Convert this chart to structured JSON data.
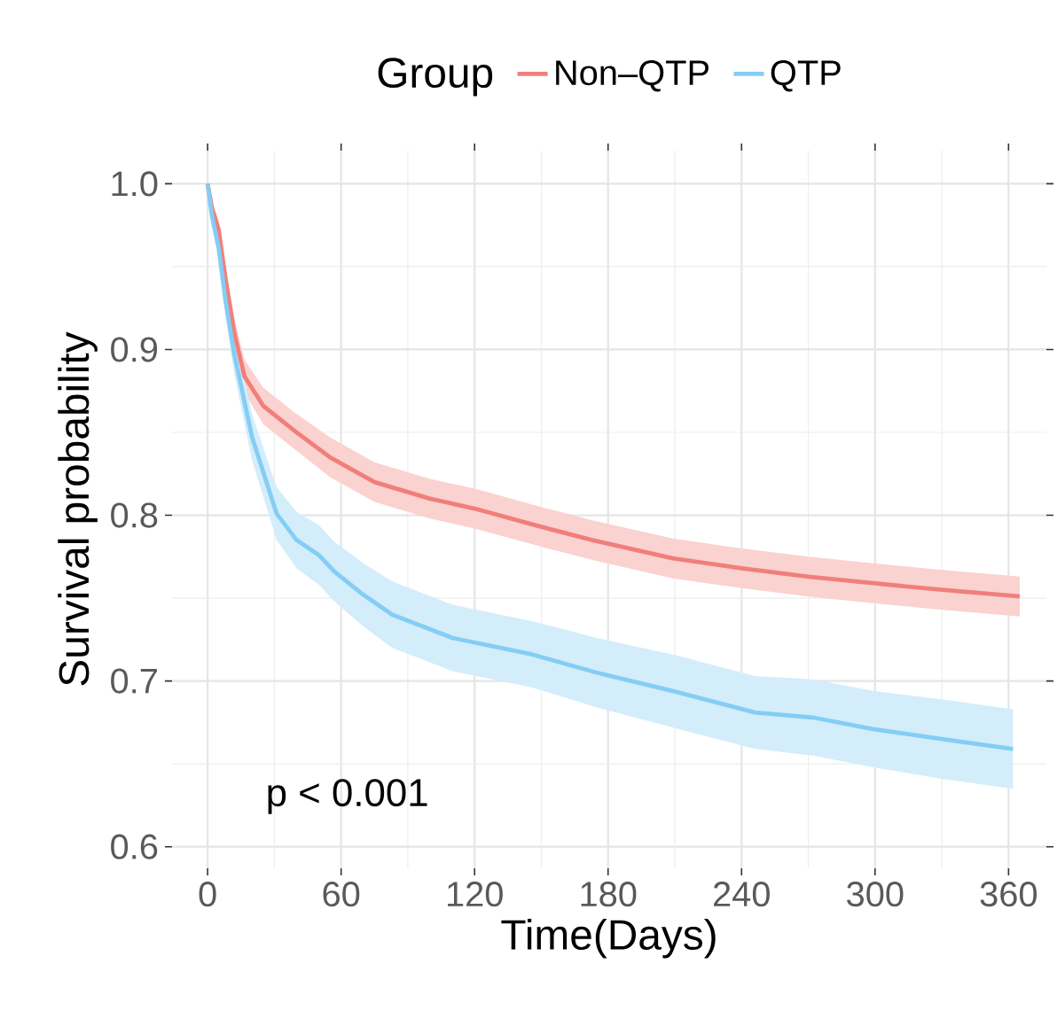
{
  "chart_data": {
    "type": "line",
    "xlabel": "Time(Days)",
    "ylabel": "Survival probability",
    "legend_title": "Group",
    "legend": "top",
    "grid": true,
    "xlim": [
      -16,
      377
    ],
    "xticks": [
      0,
      60,
      120,
      180,
      240,
      300,
      360
    ],
    "ylim": [
      0.587,
      1.02
    ],
    "yticks": [
      {
        "value": 0.6,
        "label": "0.6"
      },
      {
        "value": 0.7,
        "label": "0.7"
      },
      {
        "value": 0.8,
        "label": "0.8"
      },
      {
        "value": 0.9,
        "label": "0.9"
      },
      {
        "value": 1,
        "label": "1.0"
      }
    ],
    "annotations": [
      "p < 0.001"
    ],
    "series": [
      {
        "name": "Non–QTP",
        "color": "#f07f7a",
        "x": [
          0,
          2,
          5,
          8,
          12,
          16.5,
          25,
          39,
          55,
          75,
          100,
          120,
          150,
          173,
          209,
          240,
          270,
          299,
          330,
          365
        ],
        "values": [
          1,
          0.985,
          0.972,
          0.943,
          0.91,
          0.884,
          0.866,
          0.851,
          0.835,
          0.82,
          0.81,
          0.804,
          0.793,
          0.785,
          0.774,
          0.768,
          0.763,
          0.759,
          0.755,
          0.751
        ],
        "lower": [
          1,
          0.981,
          0.966,
          0.935,
          0.901,
          0.874,
          0.855,
          0.84,
          0.823,
          0.808,
          0.798,
          0.792,
          0.781,
          0.773,
          0.762,
          0.756,
          0.751,
          0.747,
          0.743,
          0.739
        ],
        "upper": [
          1,
          0.989,
          0.978,
          0.951,
          0.919,
          0.894,
          0.877,
          0.862,
          0.847,
          0.832,
          0.822,
          0.816,
          0.805,
          0.797,
          0.786,
          0.78,
          0.775,
          0.771,
          0.767,
          0.763
        ]
      },
      {
        "name": "QTP",
        "color": "#84cdf5",
        "x": [
          0,
          2,
          5,
          8,
          12,
          20,
          31,
          40,
          50,
          57,
          70,
          83,
          110,
          146,
          175,
          209,
          246,
          272,
          299,
          330,
          362
        ],
        "values": [
          1,
          0.98,
          0.961,
          0.93,
          0.897,
          0.847,
          0.801,
          0.785,
          0.776,
          0.766,
          0.752,
          0.74,
          0.726,
          0.716,
          0.705,
          0.694,
          0.681,
          0.678,
          0.671,
          0.665,
          0.659
        ],
        "lower": [
          1,
          0.975,
          0.953,
          0.92,
          0.885,
          0.833,
          0.785,
          0.768,
          0.758,
          0.748,
          0.733,
          0.72,
          0.706,
          0.696,
          0.684,
          0.672,
          0.659,
          0.655,
          0.648,
          0.641,
          0.635
        ],
        "upper": [
          1,
          0.985,
          0.969,
          0.94,
          0.909,
          0.861,
          0.817,
          0.802,
          0.794,
          0.784,
          0.771,
          0.76,
          0.746,
          0.736,
          0.726,
          0.716,
          0.703,
          0.701,
          0.694,
          0.689,
          0.683
        ]
      }
    ]
  }
}
